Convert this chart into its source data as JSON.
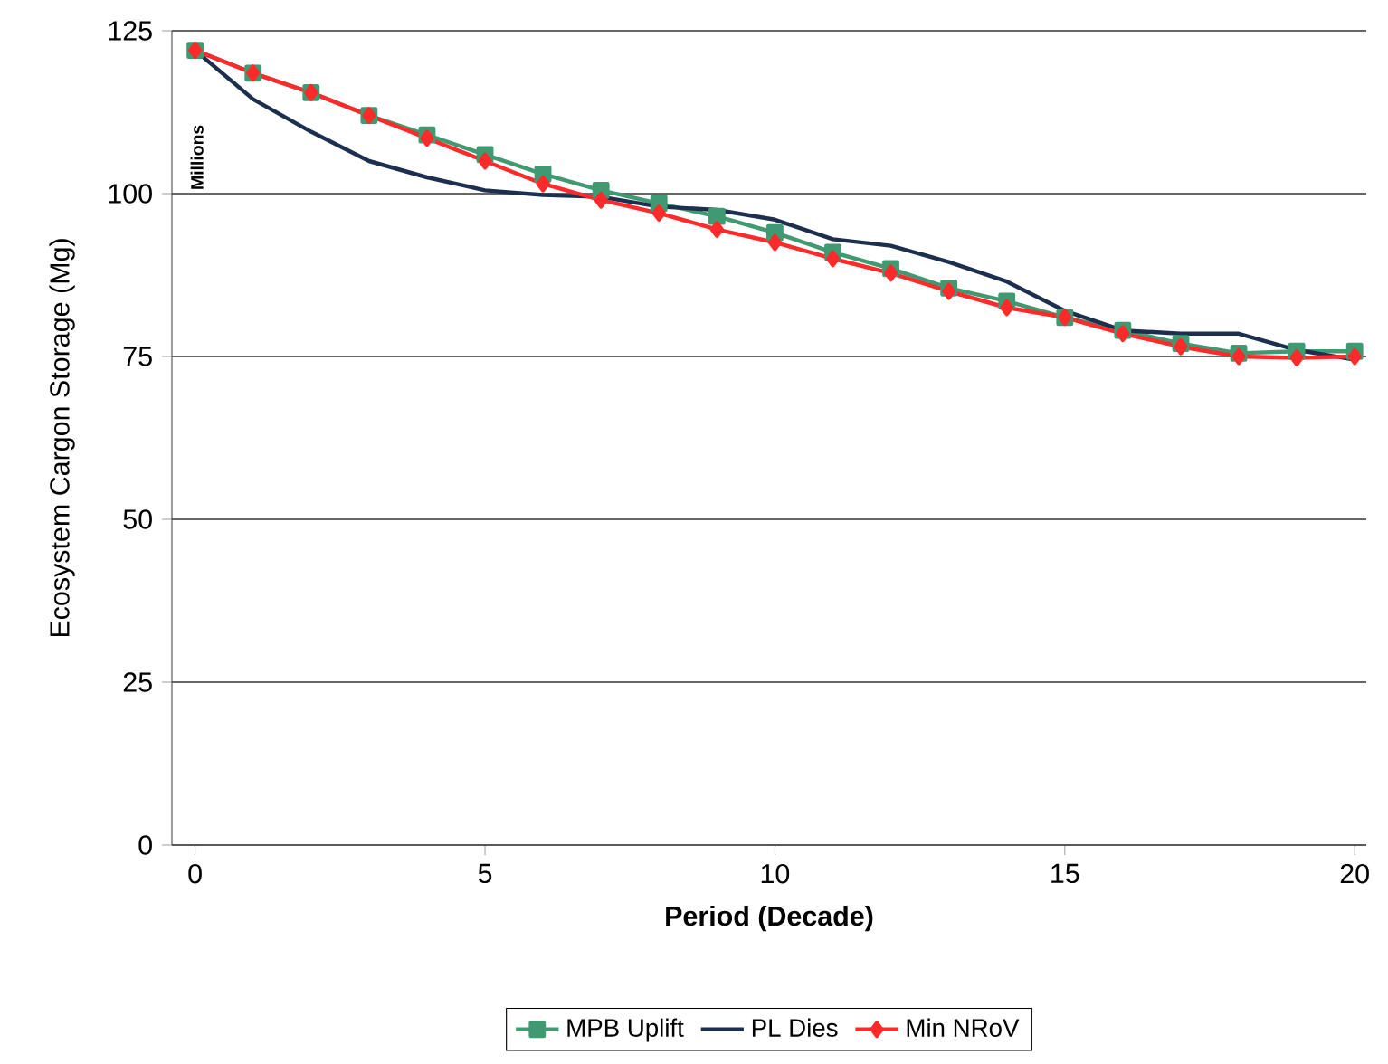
{
  "chart_data": {
    "type": "line",
    "xlabel": "Period (Decade)",
    "ylabel": "Ecosystem Cargon Storage (Mg)",
    "annotations": [
      "Millions"
    ],
    "x": [
      0,
      1,
      2,
      3,
      4,
      5,
      6,
      7,
      8,
      9,
      10,
      11,
      12,
      13,
      14,
      15,
      16,
      17,
      18,
      19,
      20
    ],
    "series": [
      {
        "name": "MPB Uplift",
        "color": "#3f9a72",
        "marker": "square",
        "values": [
          122,
          118.5,
          115.5,
          112,
          109,
          106,
          103,
          100.5,
          98.5,
          96.5,
          94,
          91,
          88.5,
          85.5,
          83.5,
          81,
          79,
          77,
          75.5,
          75.8,
          75.8
        ]
      },
      {
        "name": "PL Dies",
        "color": "#1c2f4f",
        "marker": "none",
        "values": [
          122,
          114.5,
          109.5,
          105,
          102.5,
          100.5,
          99.8,
          99.5,
          98,
          97.5,
          96,
          93,
          92,
          89.5,
          86.5,
          82,
          79,
          78.5,
          78.5,
          76,
          74.5
        ]
      },
      {
        "name": "Min NRoV",
        "color": "#ff2a2a",
        "marker": "diamond",
        "values": [
          122,
          118.5,
          115.5,
          112,
          108.5,
          105,
          101.5,
          99,
          97,
          94.5,
          92.5,
          90,
          87.8,
          85,
          82.5,
          81,
          78.5,
          76.5,
          75,
          74.8,
          75
        ]
      }
    ],
    "xlim": [
      -0.4,
      20.2
    ],
    "xticks": [
      0,
      5,
      10,
      15,
      20
    ],
    "ylim": [
      0,
      125
    ],
    "yticks": [
      0,
      25,
      50,
      75,
      100,
      125
    ],
    "grid": "y",
    "legend": "bottom",
    "line_style": "solid"
  }
}
